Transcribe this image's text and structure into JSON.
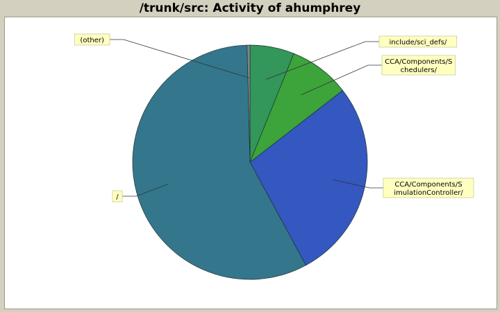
{
  "title": "/trunk/src: Activity of ahumphrey",
  "chart_data": {
    "type": "pie",
    "title": "/trunk/src: Activity of ahumphrey",
    "slices": [
      {
        "label": [
          "include/sci_defs/"
        ],
        "value": 6.1,
        "color": "#33965a"
      },
      {
        "label": [
          "CCA/Components/S",
          "chedulers/"
        ],
        "value": 8.4,
        "color": "#3ca43a"
      },
      {
        "label": [
          "CCA/Components/S",
          "imulationController/"
        ],
        "value": 27.6,
        "color": "#3457c0"
      },
      {
        "label": [
          "/"
        ],
        "value": 57.5,
        "color": "#34778c"
      },
      {
        "label": [
          "(other)"
        ],
        "value": 0.4,
        "color": "#7a8a8a"
      }
    ],
    "legend": "callout labels",
    "label_background": "#ffffc0"
  }
}
